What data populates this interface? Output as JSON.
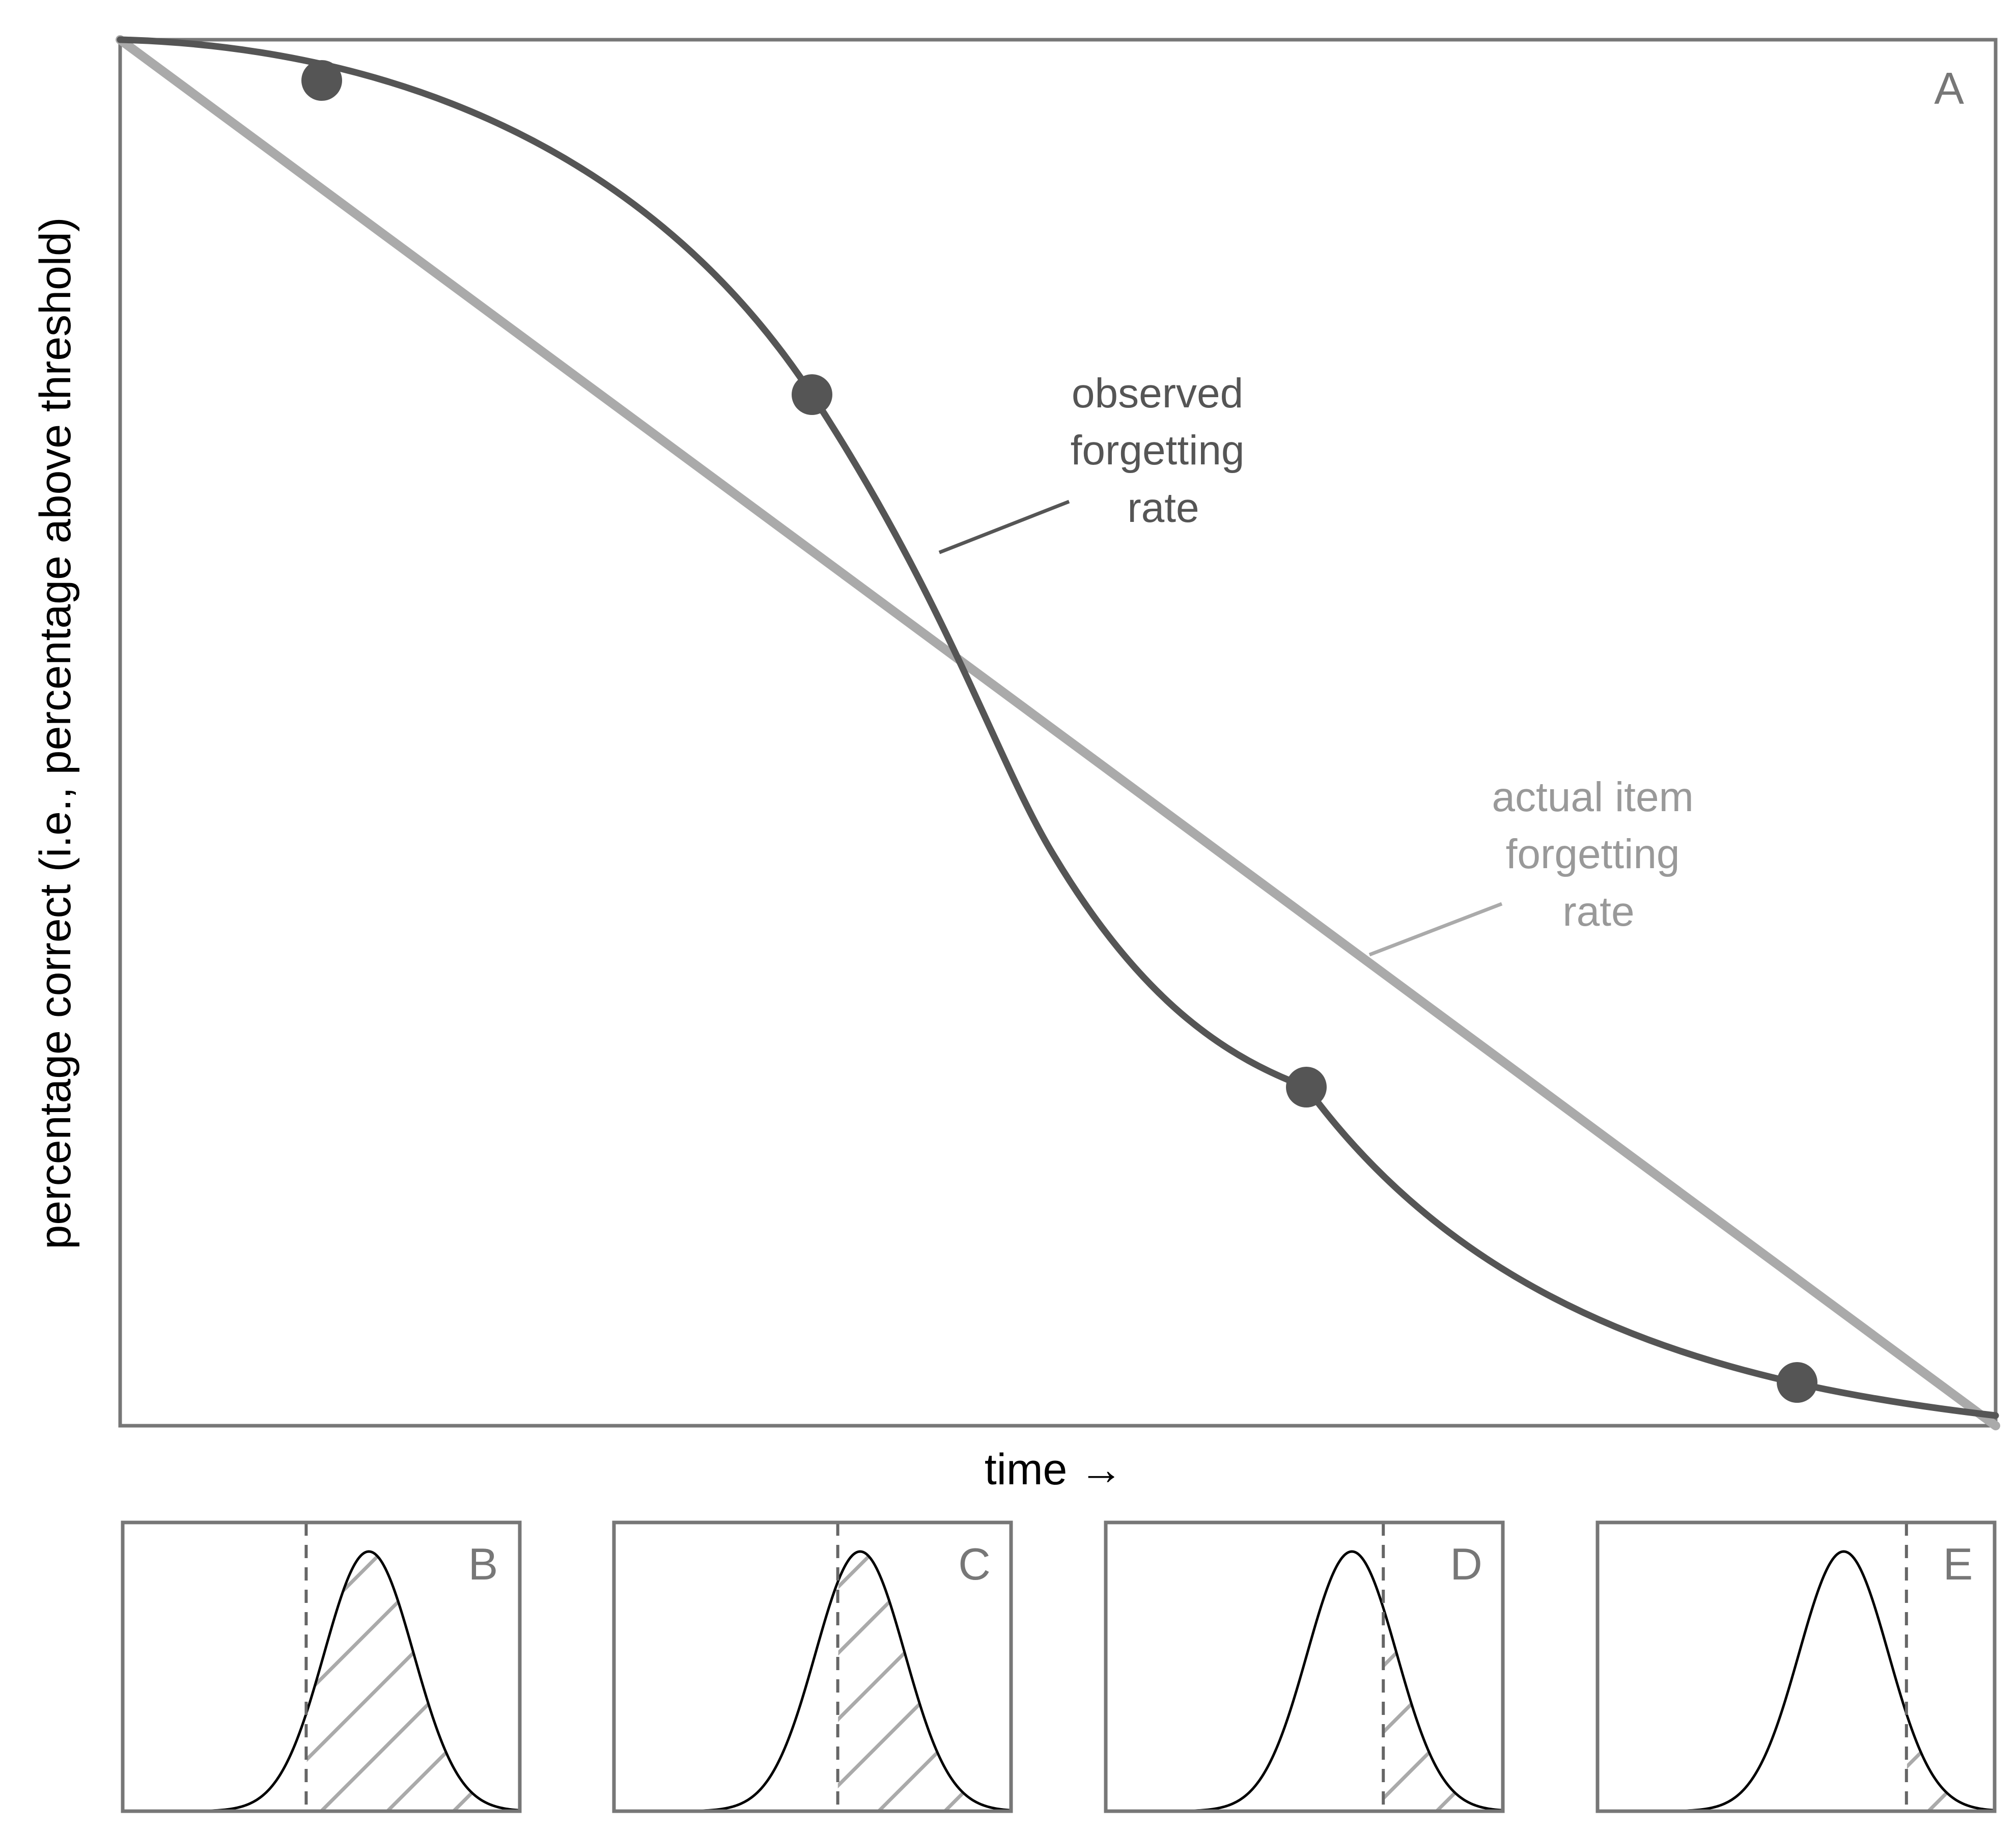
{
  "main_panel": {
    "letter": "A",
    "y_axis_label": "percentage correct (i.e., percentage above threshold)",
    "x_axis_label": "time →",
    "observed_label": [
      "observed",
      "forgetting",
      "rate"
    ],
    "actual_label": [
      "actual item",
      "forgetting",
      "rate"
    ]
  },
  "small_panels": [
    {
      "letter": "B",
      "threshold_offset_sd": -1.4
    },
    {
      "letter": "C",
      "threshold_offset_sd": -0.5
    },
    {
      "letter": "D",
      "threshold_offset_sd": 0.7
    },
    {
      "letter": "E",
      "threshold_offset_sd": 1.4
    }
  ],
  "colors": {
    "frame": "#777777",
    "observed_curve": "#555555",
    "actual_line": "#aaaaaa",
    "observed_label": "#555555",
    "actual_label": "#999999",
    "axis_label": "#000000",
    "letter": "#777777",
    "gaussian": "#000000",
    "threshold": "#666666",
    "hatch": "#aaaaaa"
  }
}
